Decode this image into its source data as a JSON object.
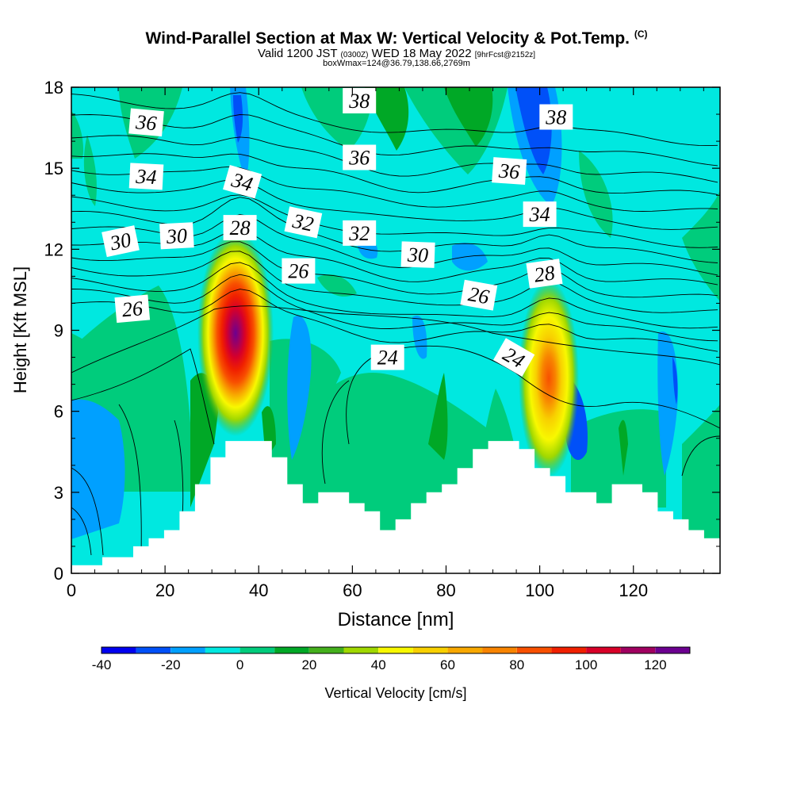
{
  "header": {
    "title_main": "Wind-Parallel Section at Max W: Vertical Velocity & Pot.Temp.",
    "title_units": "(C)",
    "valid_prefix": "Valid 1200 JST",
    "valid_utc": "(0300Z)",
    "valid_date": "WED 18 May 2022",
    "forecast": "[9hrFcst@2152z]",
    "box_info": "boxWmax=124@36.79,138.66,2769m"
  },
  "chart_data": {
    "type": "heatmap",
    "xlabel": "Distance [nm]",
    "ylabel": "Height [Kft MSL]",
    "xlim": [
      0,
      138.5
    ],
    "ylim": [
      0,
      18
    ],
    "x_ticks": [
      0,
      20,
      40,
      60,
      80,
      100,
      120
    ],
    "y_ticks": [
      0,
      3,
      6,
      9,
      12,
      15,
      18
    ],
    "terrain_kft": [
      [
        0,
        0.3
      ],
      [
        6.6,
        0.3
      ],
      [
        6.6,
        0.6
      ],
      [
        13.2,
        0.6
      ],
      [
        13.2,
        1.0
      ],
      [
        16.5,
        1.0
      ],
      [
        16.5,
        1.3
      ],
      [
        19.8,
        1.3
      ],
      [
        19.8,
        1.6
      ],
      [
        23.1,
        1.6
      ],
      [
        23.1,
        2.3
      ],
      [
        26.4,
        2.3
      ],
      [
        26.4,
        3.3
      ],
      [
        29.7,
        3.3
      ],
      [
        29.7,
        4.3
      ],
      [
        32.9,
        4.3
      ],
      [
        32.9,
        4.9
      ],
      [
        42.8,
        4.9
      ],
      [
        42.8,
        4.3
      ],
      [
        46.1,
        4.3
      ],
      [
        46.1,
        3.3
      ],
      [
        49.4,
        3.3
      ],
      [
        49.4,
        2.6
      ],
      [
        52.7,
        2.6
      ],
      [
        52.7,
        3.0
      ],
      [
        59.3,
        3.0
      ],
      [
        59.3,
        2.6
      ],
      [
        62.6,
        2.6
      ],
      [
        62.6,
        2.3
      ],
      [
        65.9,
        2.3
      ],
      [
        65.9,
        1.6
      ],
      [
        69.2,
        1.6
      ],
      [
        69.2,
        2.0
      ],
      [
        72.5,
        2.0
      ],
      [
        72.5,
        2.6
      ],
      [
        75.8,
        2.6
      ],
      [
        75.8,
        3.0
      ],
      [
        79.1,
        3.0
      ],
      [
        79.1,
        3.3
      ],
      [
        82.4,
        3.3
      ],
      [
        82.4,
        3.9
      ],
      [
        85.7,
        3.9
      ],
      [
        85.7,
        4.6
      ],
      [
        89.0,
        4.6
      ],
      [
        89.0,
        4.9
      ],
      [
        95.6,
        4.9
      ],
      [
        95.6,
        4.6
      ],
      [
        98.9,
        4.6
      ],
      [
        98.9,
        3.9
      ],
      [
        102.2,
        3.9
      ],
      [
        102.2,
        3.6
      ],
      [
        105.5,
        3.6
      ],
      [
        105.5,
        3.0
      ],
      [
        112.1,
        3.0
      ],
      [
        112.1,
        2.6
      ],
      [
        115.4,
        2.6
      ],
      [
        115.4,
        3.3
      ],
      [
        121.9,
        3.3
      ],
      [
        121.9,
        3.0
      ],
      [
        125.2,
        3.0
      ],
      [
        125.2,
        2.3
      ],
      [
        128.5,
        2.3
      ],
      [
        128.5,
        2.0
      ],
      [
        131.8,
        2.0
      ],
      [
        131.8,
        1.6
      ],
      [
        135.1,
        1.6
      ],
      [
        135.1,
        1.3
      ],
      [
        138.5,
        1.3
      ]
    ],
    "updraft_cores": [
      {
        "x": 35.5,
        "y": 9.0,
        "max_cm_s": 124
      },
      {
        "x": 103.5,
        "y": 7.2,
        "max_cm_s": 85
      }
    ],
    "theta_labels_c": [
      {
        "text": "36",
        "x": 16,
        "y": 16.7,
        "angle": 5
      },
      {
        "text": "34",
        "x": 16,
        "y": 14.7,
        "angle": 3
      },
      {
        "text": "30",
        "x": 10.5,
        "y": 12.3,
        "angle": -12
      },
      {
        "text": "30",
        "x": 22.5,
        "y": 12.5,
        "angle": -3
      },
      {
        "text": "26",
        "x": 13,
        "y": 9.8,
        "angle": -5
      },
      {
        "text": "34",
        "x": 36.5,
        "y": 14.5,
        "angle": 16
      },
      {
        "text": "28",
        "x": 36,
        "y": 12.8,
        "angle": 0
      },
      {
        "text": "32",
        "x": 49.5,
        "y": 13.0,
        "angle": 12
      },
      {
        "text": "26",
        "x": 48.5,
        "y": 11.2,
        "angle": 0
      },
      {
        "text": "38",
        "x": 61.5,
        "y": 17.5,
        "angle": 0
      },
      {
        "text": "36",
        "x": 61.5,
        "y": 15.4,
        "angle": 0
      },
      {
        "text": "32",
        "x": 61.5,
        "y": 12.6,
        "angle": 0
      },
      {
        "text": "30",
        "x": 74,
        "y": 11.8,
        "angle": 2
      },
      {
        "text": "24",
        "x": 67.5,
        "y": 8.0,
        "angle": 0
      },
      {
        "text": "26",
        "x": 87,
        "y": 10.3,
        "angle": 10
      },
      {
        "text": "24",
        "x": 94.5,
        "y": 8.0,
        "angle": 30
      },
      {
        "text": "36",
        "x": 93.5,
        "y": 14.9,
        "angle": 4
      },
      {
        "text": "38",
        "x": 103.5,
        "y": 16.9,
        "angle": 0
      },
      {
        "text": "34",
        "x": 100,
        "y": 13.3,
        "angle": 0
      },
      {
        "text": "28",
        "x": 101,
        "y": 11.1,
        "angle": -8
      }
    ]
  },
  "colorbar": {
    "label": "Vertical Velocity [cm/s]",
    "tick_labels": [
      "-40",
      "-20",
      "0",
      "20",
      "40",
      "60",
      "80",
      "100",
      "120"
    ],
    "bounds": [
      -40,
      -30,
      -20,
      -10,
      0,
      10,
      20,
      30,
      40,
      50,
      60,
      70,
      80,
      90,
      100,
      110,
      120,
      130
    ],
    "colors": [
      "#0000f0",
      "#0050f8",
      "#00a0ff",
      "#00e8e0",
      "#00cc7c",
      "#00a826",
      "#44b01c",
      "#a0d800",
      "#f8f800",
      "#f8d000",
      "#f8a800",
      "#f88400",
      "#f85000",
      "#f02000",
      "#d80028",
      "#a00060",
      "#6c0090"
    ]
  }
}
